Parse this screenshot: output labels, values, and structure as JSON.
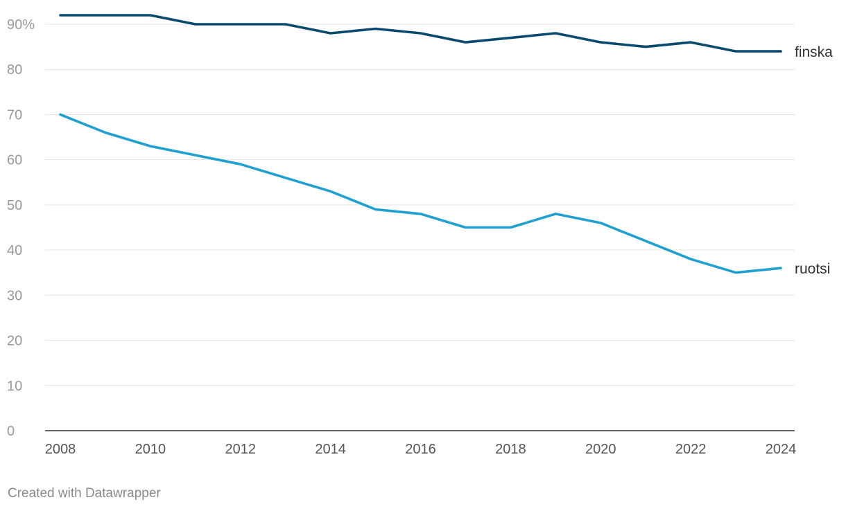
{
  "chart_data": {
    "type": "line",
    "title": "",
    "xlabel": "",
    "ylabel": "",
    "x": [
      2008,
      2009,
      2010,
      2011,
      2012,
      2013,
      2014,
      2015,
      2016,
      2017,
      2018,
      2019,
      2020,
      2021,
      2022,
      2023,
      2024
    ],
    "x_ticks": [
      "2008",
      "2010",
      "2012",
      "2014",
      "2016",
      "2018",
      "2020",
      "2022",
      "2024"
    ],
    "y_ticks": [
      "90%",
      "80",
      "70",
      "60",
      "50",
      "40",
      "30",
      "20",
      "10",
      "0"
    ],
    "ylim": [
      0,
      90
    ],
    "grid": true,
    "series": [
      {
        "name": "finska",
        "color": "#0b4a6f",
        "values": [
          92,
          92,
          92,
          90,
          90,
          90,
          88,
          89,
          88,
          86,
          87,
          88,
          86,
          85,
          86,
          84,
          84
        ]
      },
      {
        "name": "ruotsi",
        "color": "#21a0cf",
        "values": [
          70,
          66,
          63,
          61,
          59,
          56,
          53,
          49,
          48,
          45,
          45,
          48,
          46,
          42,
          38,
          35,
          36
        ]
      }
    ]
  },
  "footer": {
    "credit": "Created with Datawrapper"
  }
}
